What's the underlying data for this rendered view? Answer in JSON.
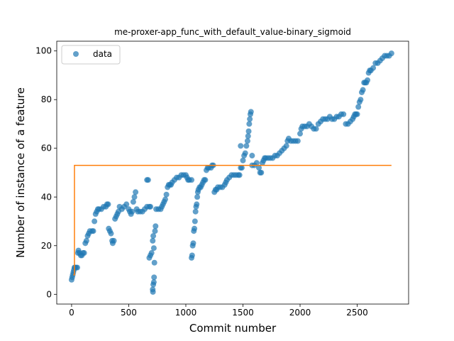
{
  "chart_data": {
    "type": "scatter",
    "title": "me-proxer-app_func_with_default_value-binary_sigmoid",
    "xlabel": "Commit number",
    "ylabel": "Number of instance of a feature",
    "xlim": [
      -130,
      2950
    ],
    "ylim": [
      -4,
      104
    ],
    "xticks": [
      0,
      500,
      1000,
      1500,
      2000,
      2500
    ],
    "yticks": [
      0,
      20,
      40,
      60,
      80,
      100
    ],
    "grid": false,
    "legend": {
      "position": "top-left",
      "entries": [
        "data"
      ]
    },
    "colors": {
      "data": "#1f77b4",
      "fit": "#ff7f0e"
    },
    "series": [
      {
        "name": "data",
        "kind": "scatter",
        "points": [
          [
            0,
            6
          ],
          [
            5,
            7
          ],
          [
            10,
            8
          ],
          [
            15,
            9
          ],
          [
            20,
            10
          ],
          [
            25,
            11
          ],
          [
            30,
            11
          ],
          [
            40,
            11
          ],
          [
            50,
            11
          ],
          [
            55,
            17
          ],
          [
            60,
            18
          ],
          [
            70,
            17
          ],
          [
            80,
            16
          ],
          [
            90,
            16
          ],
          [
            100,
            17
          ],
          [
            110,
            17
          ],
          [
            120,
            21
          ],
          [
            130,
            22
          ],
          [
            140,
            24
          ],
          [
            150,
            25
          ],
          [
            160,
            26
          ],
          [
            180,
            26
          ],
          [
            190,
            26
          ],
          [
            200,
            30
          ],
          [
            210,
            33
          ],
          [
            220,
            34
          ],
          [
            230,
            35
          ],
          [
            240,
            35
          ],
          [
            260,
            35
          ],
          [
            280,
            36
          ],
          [
            300,
            36
          ],
          [
            310,
            37
          ],
          [
            320,
            37
          ],
          [
            325,
            27
          ],
          [
            335,
            26
          ],
          [
            345,
            25
          ],
          [
            355,
            22
          ],
          [
            360,
            21
          ],
          [
            370,
            22
          ],
          [
            380,
            31
          ],
          [
            390,
            32
          ],
          [
            400,
            33
          ],
          [
            410,
            34
          ],
          [
            420,
            36
          ],
          [
            440,
            35
          ],
          [
            460,
            36
          ],
          [
            480,
            37
          ],
          [
            500,
            35
          ],
          [
            510,
            34
          ],
          [
            520,
            33
          ],
          [
            530,
            34
          ],
          [
            540,
            38
          ],
          [
            550,
            40
          ],
          [
            560,
            42
          ],
          [
            570,
            35
          ],
          [
            580,
            34
          ],
          [
            600,
            34
          ],
          [
            620,
            34
          ],
          [
            640,
            35
          ],
          [
            660,
            36
          ],
          [
            680,
            36
          ],
          [
            690,
            36
          ],
          [
            660,
            47
          ],
          [
            670,
            47
          ],
          [
            680,
            15
          ],
          [
            690,
            16
          ],
          [
            700,
            17
          ],
          [
            710,
            22
          ],
          [
            715,
            24
          ],
          [
            720,
            19
          ],
          [
            710,
            2
          ],
          [
            712,
            1
          ],
          [
            715,
            4
          ],
          [
            720,
            5
          ],
          [
            722,
            7
          ],
          [
            725,
            13
          ],
          [
            730,
            26
          ],
          [
            735,
            28
          ],
          [
            740,
            35
          ],
          [
            760,
            35
          ],
          [
            780,
            35
          ],
          [
            790,
            36
          ],
          [
            800,
            37
          ],
          [
            810,
            38
          ],
          [
            820,
            39
          ],
          [
            830,
            41
          ],
          [
            840,
            44
          ],
          [
            850,
            45
          ],
          [
            860,
            45
          ],
          [
            870,
            45
          ],
          [
            880,
            46
          ],
          [
            900,
            47
          ],
          [
            920,
            48
          ],
          [
            940,
            48
          ],
          [
            960,
            49
          ],
          [
            980,
            49
          ],
          [
            1000,
            49
          ],
          [
            1010,
            48
          ],
          [
            1020,
            47
          ],
          [
            1030,
            47
          ],
          [
            1050,
            47
          ],
          [
            1050,
            15
          ],
          [
            1055,
            16
          ],
          [
            1060,
            20
          ],
          [
            1065,
            21
          ],
          [
            1070,
            26
          ],
          [
            1075,
            27
          ],
          [
            1080,
            30
          ],
          [
            1085,
            34
          ],
          [
            1090,
            36
          ],
          [
            1095,
            37
          ],
          [
            1100,
            40
          ],
          [
            1105,
            42
          ],
          [
            1110,
            43
          ],
          [
            1120,
            44
          ],
          [
            1130,
            44
          ],
          [
            1140,
            45
          ],
          [
            1150,
            46
          ],
          [
            1160,
            47
          ],
          [
            1170,
            47
          ],
          [
            1180,
            51
          ],
          [
            1190,
            52
          ],
          [
            1200,
            52
          ],
          [
            1220,
            52
          ],
          [
            1230,
            53
          ],
          [
            1240,
            53
          ],
          [
            1250,
            42
          ],
          [
            1260,
            43
          ],
          [
            1270,
            43
          ],
          [
            1280,
            44
          ],
          [
            1300,
            44
          ],
          [
            1320,
            44
          ],
          [
            1340,
            45
          ],
          [
            1350,
            46
          ],
          [
            1360,
            47
          ],
          [
            1380,
            48
          ],
          [
            1400,
            49
          ],
          [
            1420,
            49
          ],
          [
            1440,
            49
          ],
          [
            1460,
            49
          ],
          [
            1470,
            49
          ],
          [
            1480,
            52
          ],
          [
            1490,
            52
          ],
          [
            1500,
            55
          ],
          [
            1510,
            57
          ],
          [
            1520,
            58
          ],
          [
            1530,
            61
          ],
          [
            1540,
            63
          ],
          [
            1545,
            65
          ],
          [
            1550,
            67
          ],
          [
            1555,
            70
          ],
          [
            1560,
            72
          ],
          [
            1565,
            74
          ],
          [
            1570,
            75
          ],
          [
            1580,
            57
          ],
          [
            1480,
            61
          ],
          [
            1580,
            53
          ],
          [
            1600,
            53
          ],
          [
            1620,
            54
          ],
          [
            1640,
            52
          ],
          [
            1650,
            50
          ],
          [
            1660,
            50
          ],
          [
            1670,
            54
          ],
          [
            1680,
            55
          ],
          [
            1690,
            56
          ],
          [
            1700,
            56
          ],
          [
            1720,
            56
          ],
          [
            1740,
            56
          ],
          [
            1760,
            56
          ],
          [
            1780,
            57
          ],
          [
            1800,
            57
          ],
          [
            1820,
            58
          ],
          [
            1840,
            59
          ],
          [
            1860,
            60
          ],
          [
            1880,
            61
          ],
          [
            1890,
            63
          ],
          [
            1900,
            64
          ],
          [
            1920,
            63
          ],
          [
            1940,
            63
          ],
          [
            1960,
            63
          ],
          [
            1980,
            63
          ],
          [
            2000,
            66
          ],
          [
            2010,
            68
          ],
          [
            2020,
            69
          ],
          [
            2040,
            69
          ],
          [
            2060,
            69
          ],
          [
            2080,
            70
          ],
          [
            2100,
            69
          ],
          [
            2120,
            68
          ],
          [
            2140,
            68
          ],
          [
            2160,
            70
          ],
          [
            2180,
            71
          ],
          [
            2200,
            72
          ],
          [
            2220,
            72
          ],
          [
            2240,
            72
          ],
          [
            2260,
            73
          ],
          [
            2280,
            72
          ],
          [
            2300,
            72
          ],
          [
            2320,
            73
          ],
          [
            2340,
            73
          ],
          [
            2360,
            74
          ],
          [
            2380,
            74
          ],
          [
            2400,
            70
          ],
          [
            2420,
            70
          ],
          [
            2440,
            71
          ],
          [
            2460,
            72
          ],
          [
            2470,
            73
          ],
          [
            2480,
            74
          ],
          [
            2490,
            74
          ],
          [
            2500,
            74
          ],
          [
            2510,
            77
          ],
          [
            2520,
            79
          ],
          [
            2530,
            80
          ],
          [
            2540,
            83
          ],
          [
            2550,
            84
          ],
          [
            2560,
            87
          ],
          [
            2570,
            87
          ],
          [
            2580,
            87
          ],
          [
            2590,
            88
          ],
          [
            2600,
            91
          ],
          [
            2610,
            92
          ],
          [
            2620,
            92
          ],
          [
            2640,
            93
          ],
          [
            2660,
            95
          ],
          [
            2680,
            95
          ],
          [
            2700,
            96
          ],
          [
            2720,
            97
          ],
          [
            2740,
            98
          ],
          [
            2760,
            98
          ],
          [
            2780,
            98
          ],
          [
            2800,
            99
          ]
        ]
      },
      {
        "name": "",
        "kind": "line",
        "points": [
          [
            15,
            8
          ],
          [
            25,
            8
          ],
          [
            25,
            53
          ],
          [
            2800,
            53
          ]
        ]
      }
    ]
  }
}
